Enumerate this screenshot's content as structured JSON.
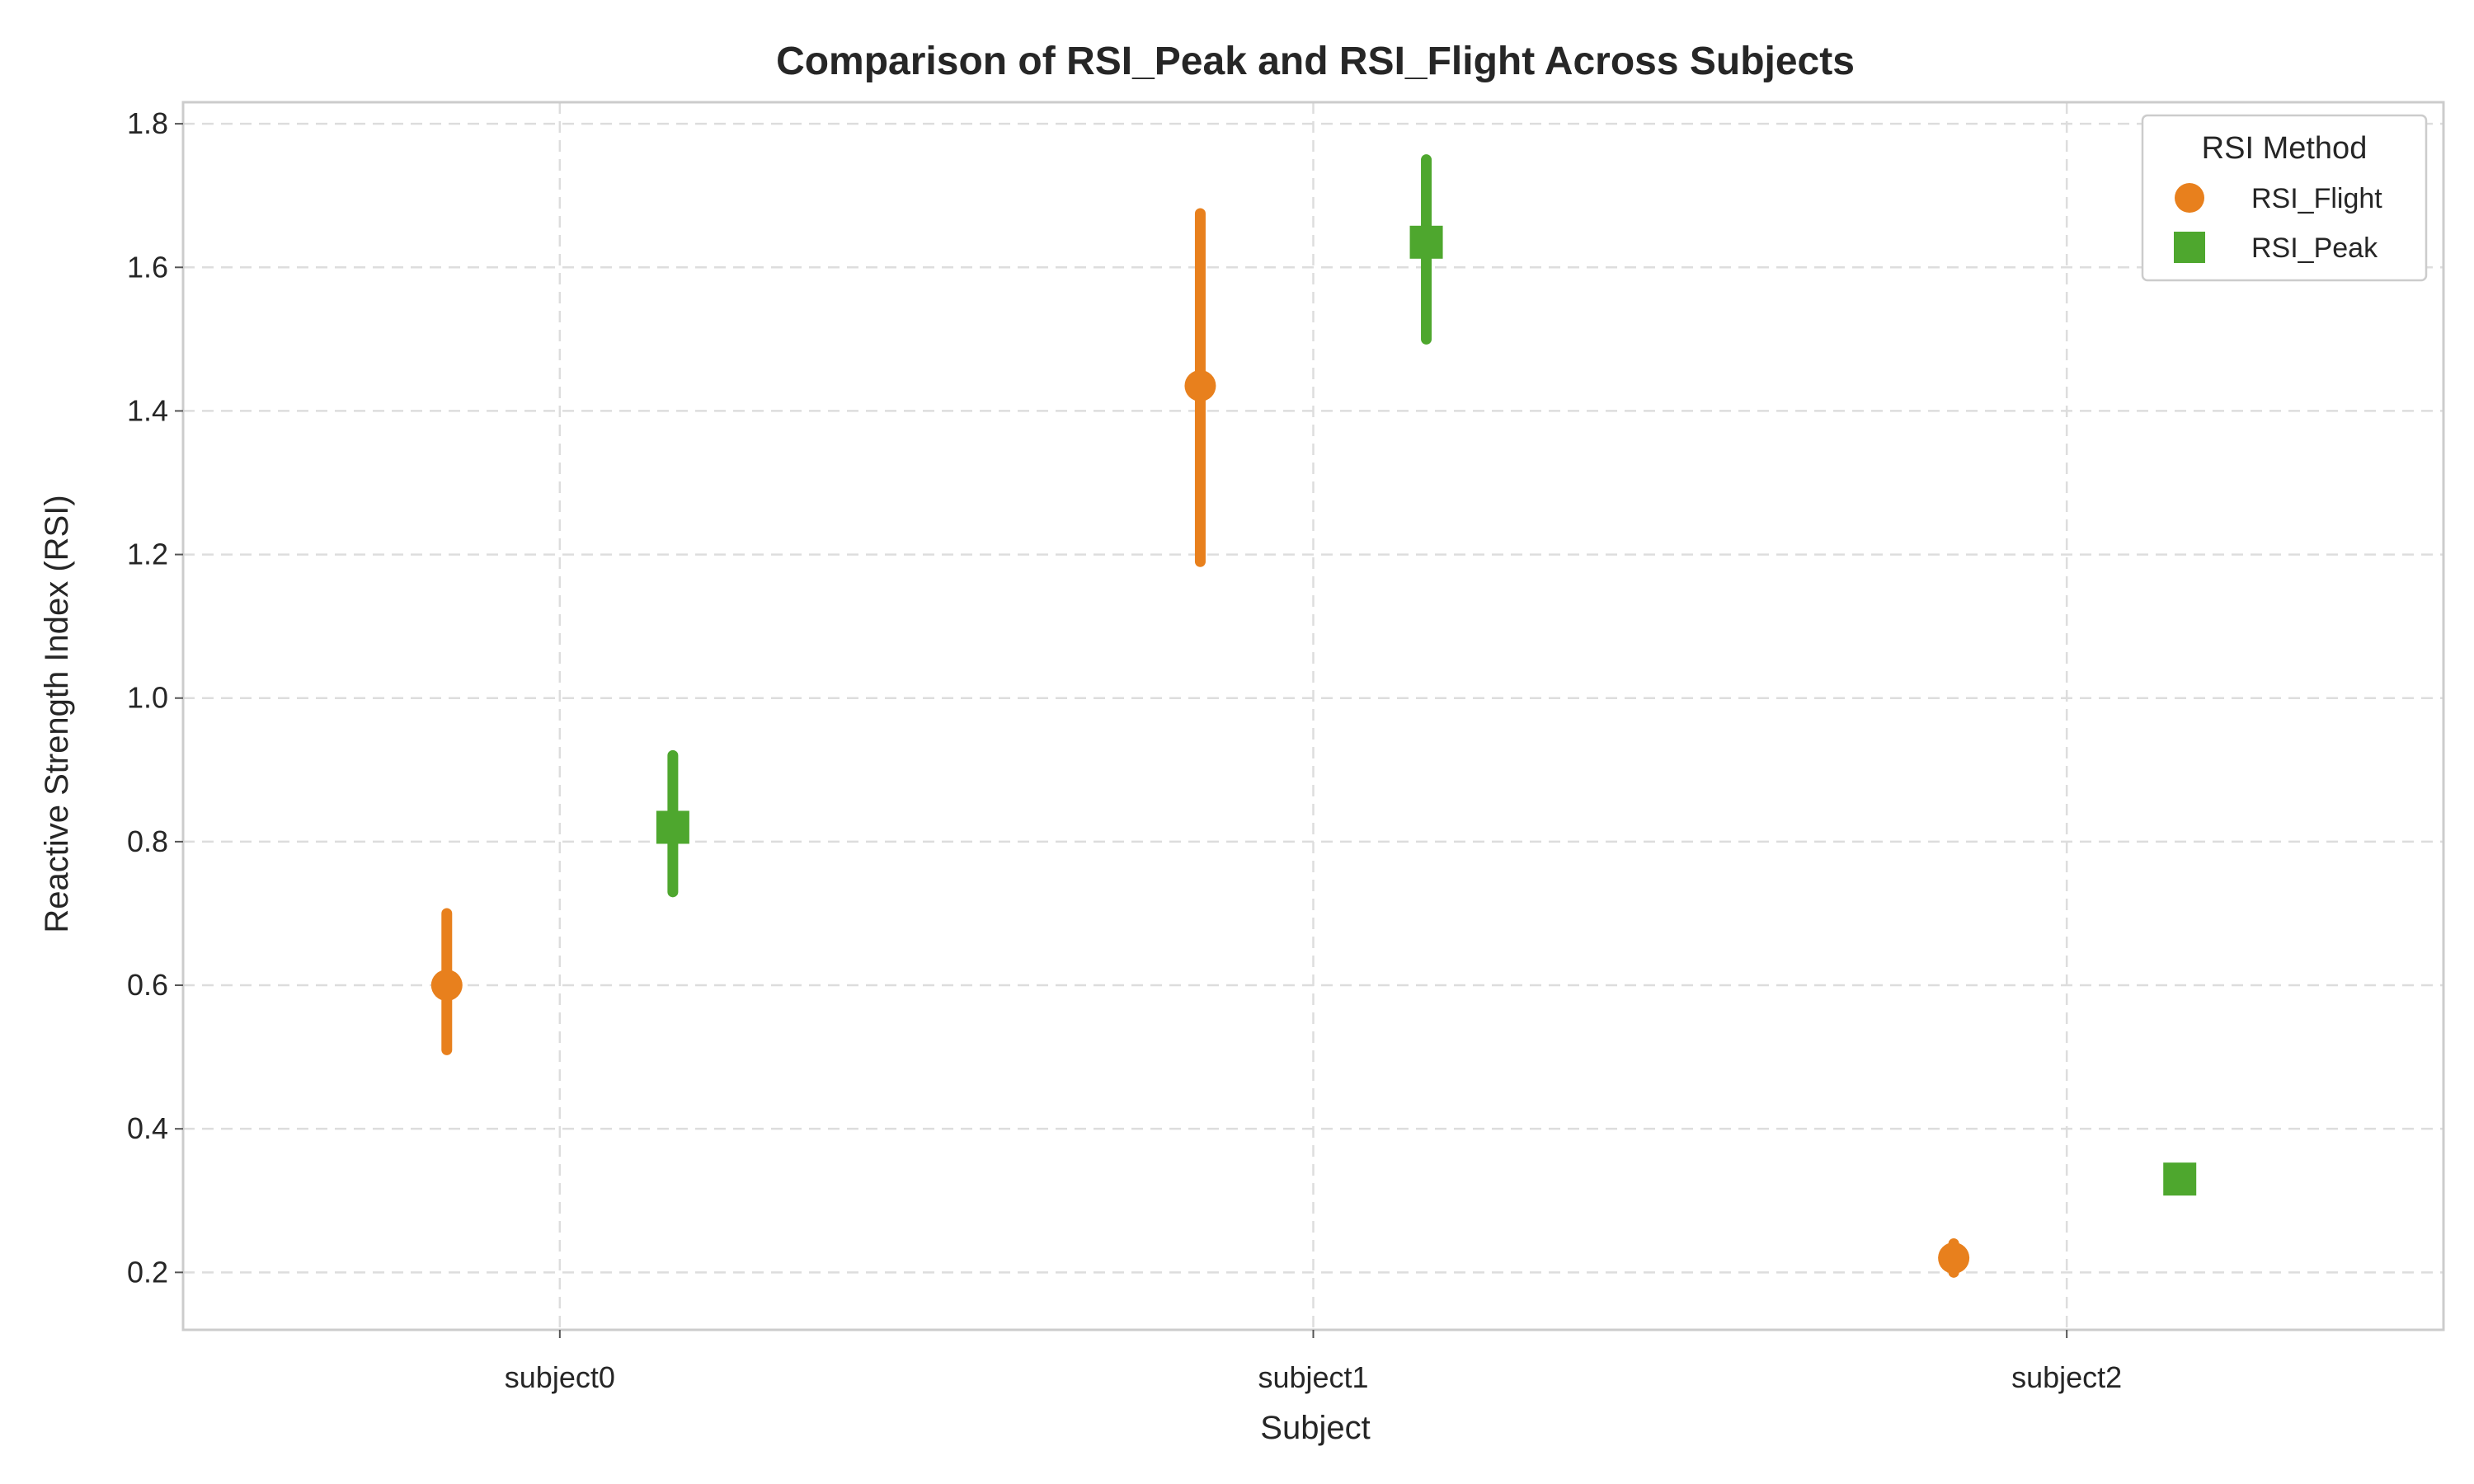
{
  "chart_data": {
    "type": "scatter",
    "title": "Comparison of RSI_Peak and RSI_Flight Across Subjects",
    "xlabel": "Subject",
    "ylabel": "Reactive Strength Index (RSI)",
    "categories": [
      "subject0",
      "subject1",
      "subject2"
    ],
    "ylim": [
      0.12,
      1.83
    ],
    "yticks": [
      0.2,
      0.4,
      0.6,
      0.8,
      1.0,
      1.2,
      1.4,
      1.6,
      1.8
    ],
    "ytick_labels": [
      "0.2",
      "0.4",
      "0.6",
      "0.8",
      "1.0",
      "1.2",
      "1.4",
      "1.6",
      "1.8"
    ],
    "grid": true,
    "legend": {
      "title": "RSI Method",
      "placement": "top-right"
    },
    "series": [
      {
        "name": "RSI_Flight",
        "marker": "circle",
        "color": "#e8801d",
        "values": [
          0.6,
          1.435,
          0.22
        ],
        "error_low": [
          0.51,
          1.19,
          0.2
        ],
        "error_high": [
          0.7,
          1.675,
          0.24
        ]
      },
      {
        "name": "RSI_Peak",
        "marker": "square",
        "color": "#4ea72e",
        "values": [
          0.82,
          1.635,
          0.33
        ],
        "error_low": [
          0.73,
          1.5,
          0.33
        ],
        "error_high": [
          0.92,
          1.75,
          0.33
        ]
      }
    ]
  }
}
